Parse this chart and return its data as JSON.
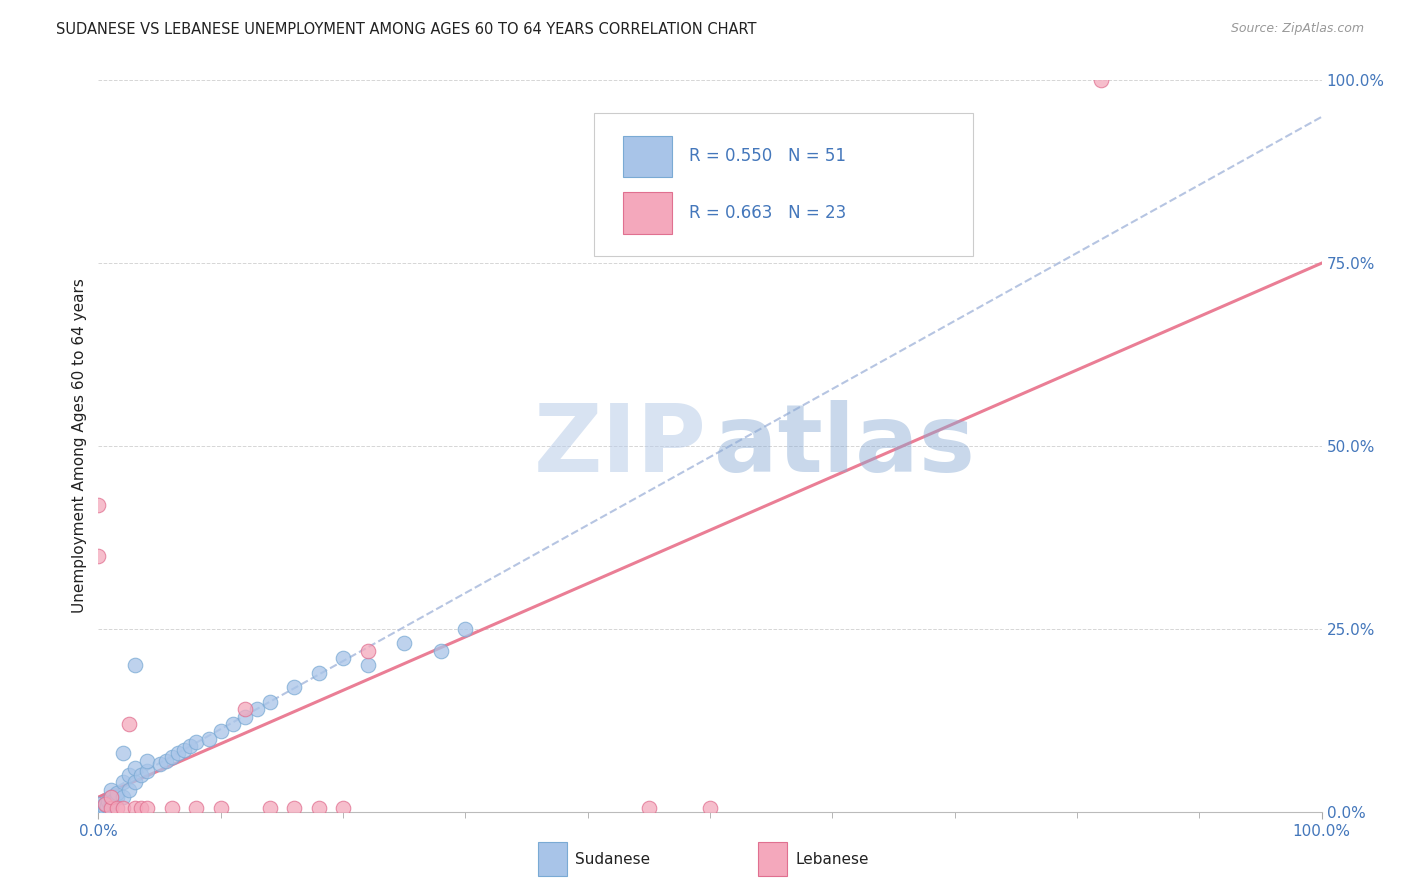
{
  "title": "SUDANESE VS LEBANESE UNEMPLOYMENT AMONG AGES 60 TO 64 YEARS CORRELATION CHART",
  "source": "Source: ZipAtlas.com",
  "ylabel": "Unemployment Among Ages 60 to 64 years",
  "xlim": [
    0,
    1.0
  ],
  "ylim": [
    0,
    1.0
  ],
  "x_tick_labels": [
    "0.0%",
    "100.0%"
  ],
  "y_tick_labels": [
    "0.0%",
    "25.0%",
    "50.0%",
    "75.0%",
    "100.0%"
  ],
  "y_tick_positions": [
    0.0,
    0.25,
    0.5,
    0.75,
    1.0
  ],
  "sudanese_R": "0.550",
  "sudanese_N": "51",
  "lebanese_R": "0.663",
  "lebanese_N": "23",
  "sudanese_color": "#a8c4e8",
  "lebanese_color": "#f4a8bc",
  "sudanese_edge": "#7aaad4",
  "lebanese_edge": "#e07090",
  "trend_blue_color": "#aabbdd",
  "trend_pink_color": "#e8708a",
  "title_color": "#222222",
  "axis_label_color": "#222222",
  "tick_color": "#4477bb",
  "grid_color": "#cccccc",
  "blue_slope": 0.93,
  "blue_intercept": 0.02,
  "pink_slope": 0.73,
  "pink_intercept": 0.02,
  "sudanese_x": [
    0.0,
    0.0,
    0.0,
    0.0,
    0.0,
    0.0,
    0.0,
    0.0,
    0.0,
    0.0,
    0.005,
    0.005,
    0.007,
    0.008,
    0.01,
    0.01,
    0.01,
    0.012,
    0.015,
    0.015,
    0.02,
    0.02,
    0.025,
    0.025,
    0.03,
    0.03,
    0.035,
    0.04,
    0.04,
    0.05,
    0.055,
    0.06,
    0.065,
    0.07,
    0.075,
    0.08,
    0.09,
    0.1,
    0.11,
    0.12,
    0.13,
    0.14,
    0.16,
    0.18,
    0.2,
    0.22,
    0.25,
    0.28,
    0.3,
    0.03,
    0.02
  ],
  "sudanese_y": [
    0.0,
    0.0,
    0.0,
    0.0,
    0.0,
    0.002,
    0.003,
    0.005,
    0.007,
    0.01,
    0.005,
    0.01,
    0.008,
    0.015,
    0.01,
    0.02,
    0.03,
    0.015,
    0.02,
    0.025,
    0.02,
    0.04,
    0.03,
    0.05,
    0.04,
    0.06,
    0.05,
    0.055,
    0.07,
    0.065,
    0.07,
    0.075,
    0.08,
    0.085,
    0.09,
    0.095,
    0.1,
    0.11,
    0.12,
    0.13,
    0.14,
    0.15,
    0.17,
    0.19,
    0.21,
    0.2,
    0.23,
    0.22,
    0.25,
    0.2,
    0.08
  ],
  "lebanese_x": [
    0.0,
    0.0,
    0.005,
    0.01,
    0.01,
    0.015,
    0.02,
    0.025,
    0.03,
    0.035,
    0.04,
    0.06,
    0.08,
    0.1,
    0.12,
    0.14,
    0.16,
    0.18,
    0.2,
    0.22,
    0.45,
    0.5,
    0.82
  ],
  "lebanese_y": [
    0.42,
    0.35,
    0.01,
    0.005,
    0.02,
    0.005,
    0.005,
    0.12,
    0.005,
    0.005,
    0.005,
    0.005,
    0.005,
    0.005,
    0.14,
    0.005,
    0.005,
    0.005,
    0.005,
    0.22,
    0.005,
    0.005,
    1.0
  ]
}
